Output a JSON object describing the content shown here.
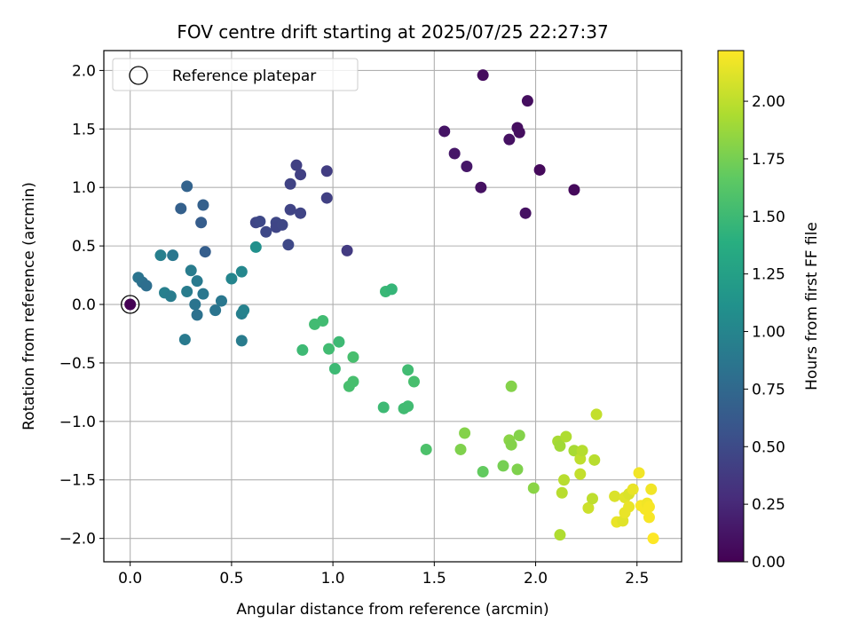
{
  "chart_data": {
    "type": "scatter",
    "title": "FOV centre drift starting at 2025/07/25 22:27:37",
    "xlabel": "Angular distance from reference (arcmin)",
    "ylabel": "Rotation from reference (arcmin)",
    "xlim": [
      -0.13,
      2.72
    ],
    "ylim": [
      -2.2,
      2.17
    ],
    "xticks": [
      0.0,
      0.5,
      1.0,
      1.5,
      2.0,
      2.5
    ],
    "xtick_labels": [
      "0.0",
      "0.5",
      "1.0",
      "1.5",
      "2.0",
      "2.5"
    ],
    "yticks": [
      -2.0,
      -1.5,
      -1.0,
      -0.5,
      0.0,
      0.5,
      1.0,
      1.5,
      2.0
    ],
    "ytick_labels": [
      "−2.0",
      "−1.5",
      "−1.0",
      "−0.5",
      "0.0",
      "0.5",
      "1.0",
      "1.5",
      "2.0"
    ],
    "grid": true,
    "legend": {
      "position": "top-left",
      "entries": [
        "Reference platepar"
      ]
    },
    "reference_point": {
      "x": 0.0,
      "y": 0.0
    },
    "colorbar": {
      "label": "Hours from first FF file",
      "colormap": "viridis",
      "range": [
        0.0,
        2.22
      ],
      "ticks": [
        0.0,
        0.25,
        0.5,
        0.75,
        1.0,
        1.25,
        1.5,
        1.75,
        2.0
      ],
      "tick_labels": [
        "0.00",
        "0.25",
        "0.50",
        "0.75",
        "1.00",
        "1.25",
        "1.50",
        "1.75",
        "2.00"
      ]
    },
    "points": [
      [
        0.0,
        0.0,
        0.0
      ],
      [
        1.74,
        1.96,
        0.07
      ],
      [
        1.96,
        1.74,
        0.08
      ],
      [
        1.55,
        1.48,
        0.12
      ],
      [
        1.6,
        1.29,
        0.14
      ],
      [
        1.66,
        1.18,
        0.14
      ],
      [
        1.73,
        1.0,
        0.1
      ],
      [
        1.87,
        1.41,
        0.1
      ],
      [
        1.91,
        1.51,
        0.08
      ],
      [
        1.92,
        1.47,
        0.08
      ],
      [
        2.02,
        1.15,
        0.05
      ],
      [
        2.19,
        0.98,
        0.05
      ],
      [
        1.95,
        0.78,
        0.1
      ],
      [
        0.82,
        1.19,
        0.42
      ],
      [
        0.84,
        1.11,
        0.42
      ],
      [
        0.97,
        1.14,
        0.4
      ],
      [
        0.79,
        1.03,
        0.44
      ],
      [
        0.97,
        0.91,
        0.42
      ],
      [
        0.79,
        0.81,
        0.45
      ],
      [
        0.84,
        0.78,
        0.45
      ],
      [
        0.62,
        0.7,
        0.46
      ],
      [
        0.64,
        0.71,
        0.48
      ],
      [
        0.72,
        0.7,
        0.47
      ],
      [
        0.72,
        0.66,
        0.46
      ],
      [
        0.75,
        0.68,
        0.47
      ],
      [
        0.67,
        0.62,
        0.48
      ],
      [
        0.78,
        0.51,
        0.48
      ],
      [
        1.07,
        0.46,
        0.38
      ],
      [
        0.28,
        1.01,
        0.7
      ],
      [
        0.36,
        0.85,
        0.68
      ],
      [
        0.25,
        0.82,
        0.68
      ],
      [
        0.35,
        0.7,
        0.65
      ],
      [
        0.37,
        0.45,
        0.66
      ],
      [
        0.15,
        0.42,
        0.95
      ],
      [
        0.21,
        0.42,
        0.88
      ],
      [
        0.04,
        0.23,
        0.85
      ],
      [
        0.06,
        0.19,
        0.82
      ],
      [
        0.08,
        0.16,
        0.8
      ],
      [
        0.3,
        0.29,
        0.92
      ],
      [
        0.33,
        0.2,
        0.9
      ],
      [
        0.28,
        0.11,
        0.92
      ],
      [
        0.36,
        0.09,
        0.88
      ],
      [
        0.17,
        0.1,
        0.95
      ],
      [
        0.2,
        0.07,
        0.92
      ],
      [
        0.32,
        0.0,
        0.85
      ],
      [
        0.33,
        -0.09,
        0.82
      ],
      [
        0.42,
        -0.05,
        0.85
      ],
      [
        0.45,
        0.03,
        0.88
      ],
      [
        0.27,
        -0.3,
        0.9
      ],
      [
        0.5,
        0.22,
        1.0
      ],
      [
        0.55,
        0.28,
        1.02
      ],
      [
        0.55,
        -0.08,
        0.95
      ],
      [
        0.56,
        -0.05,
        0.98
      ],
      [
        0.55,
        -0.31,
        0.92
      ],
      [
        0.62,
        0.49,
        1.1
      ],
      [
        0.85,
        -0.39,
        1.5
      ],
      [
        0.91,
        -0.17,
        1.52
      ],
      [
        0.95,
        -0.14,
        1.52
      ],
      [
        0.98,
        -0.38,
        1.52
      ],
      [
        1.03,
        -0.32,
        1.5
      ],
      [
        1.01,
        -0.55,
        1.5
      ],
      [
        1.08,
        -0.7,
        1.55
      ],
      [
        1.1,
        -0.66,
        1.55
      ],
      [
        1.1,
        -0.45,
        1.55
      ],
      [
        1.25,
        -0.88,
        1.5
      ],
      [
        1.26,
        0.11,
        1.48
      ],
      [
        1.29,
        0.13,
        1.46
      ],
      [
        1.35,
        -0.89,
        1.52
      ],
      [
        1.37,
        -0.87,
        1.52
      ],
      [
        1.37,
        -0.56,
        1.52
      ],
      [
        1.4,
        -0.66,
        1.55
      ],
      [
        1.46,
        -1.24,
        1.58
      ],
      [
        1.63,
        -1.24,
        1.78
      ],
      [
        1.65,
        -1.1,
        1.8
      ],
      [
        1.74,
        -1.43,
        1.68
      ],
      [
        1.84,
        -1.38,
        1.75
      ],
      [
        1.87,
        -1.16,
        1.82
      ],
      [
        1.88,
        -1.2,
        1.8
      ],
      [
        1.88,
        -0.7,
        1.8
      ],
      [
        1.91,
        -1.41,
        1.78
      ],
      [
        1.92,
        -1.12,
        1.8
      ],
      [
        1.99,
        -1.57,
        1.82
      ],
      [
        2.11,
        -1.17,
        1.92
      ],
      [
        2.12,
        -1.21,
        1.9
      ],
      [
        2.12,
        -1.97,
        1.95
      ],
      [
        2.13,
        -1.61,
        1.98
      ],
      [
        2.14,
        -1.5,
        1.98
      ],
      [
        2.15,
        -1.13,
        1.95
      ],
      [
        2.19,
        -1.25,
        1.92
      ],
      [
        2.22,
        -1.32,
        2.0
      ],
      [
        2.22,
        -1.45,
        2.02
      ],
      [
        2.23,
        -1.25,
        1.97
      ],
      [
        2.26,
        -1.74,
        2.05
      ],
      [
        2.28,
        -1.66,
        2.0
      ],
      [
        2.29,
        -1.33,
        1.98
      ],
      [
        2.3,
        -0.94,
        2.02
      ],
      [
        2.39,
        -1.64,
        2.1
      ],
      [
        2.4,
        -1.86,
        2.15
      ],
      [
        2.43,
        -1.85,
        2.12
      ],
      [
        2.44,
        -1.65,
        2.12
      ],
      [
        2.44,
        -1.78,
        2.15
      ],
      [
        2.46,
        -1.62,
        2.1
      ],
      [
        2.46,
        -1.73,
        2.15
      ],
      [
        2.48,
        -1.58,
        2.15
      ],
      [
        2.51,
        -1.44,
        2.18
      ],
      [
        2.52,
        -1.72,
        2.2
      ],
      [
        2.54,
        -1.75,
        2.2
      ],
      [
        2.55,
        -1.7,
        2.18
      ],
      [
        2.56,
        -1.73,
        2.2
      ],
      [
        2.56,
        -1.82,
        2.2
      ],
      [
        2.57,
        -1.58,
        2.18
      ],
      [
        2.58,
        -2.0,
        2.22
      ]
    ]
  }
}
